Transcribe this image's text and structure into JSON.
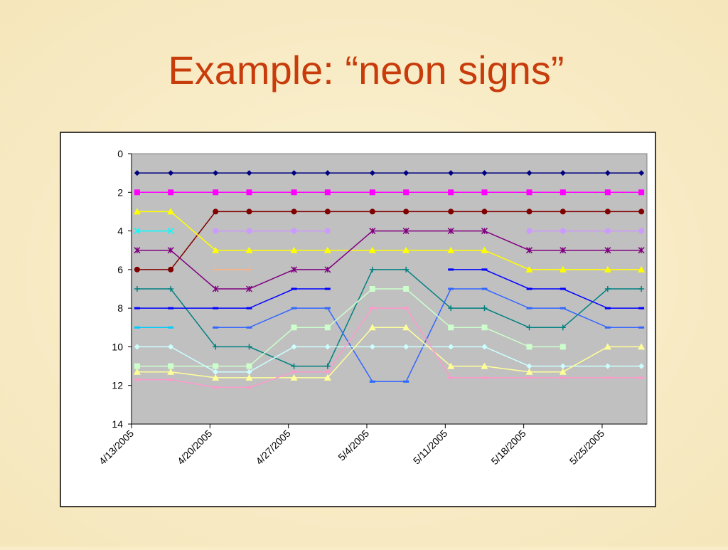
{
  "title": "Example: “neon signs”",
  "chart_data": {
    "type": "line",
    "y_reversed": true,
    "plot_background": "#c0c0c0",
    "x": [
      "4/13/2005",
      "4/16/2005",
      "4/20/2005",
      "4/23/2005",
      "4/27/2005",
      "4/30/2005",
      "5/4/2005",
      "5/7/2005",
      "5/11/2005",
      "5/14/2005",
      "5/18/2005",
      "5/21/2005",
      "5/25/2005",
      "5/28/2005"
    ],
    "xlim": [
      "4/13/2005",
      "5/29/2005"
    ],
    "xticks": [
      "4/13/2005",
      "4/20/2005",
      "4/27/2005",
      "5/4/2005",
      "5/11/2005",
      "5/18/2005",
      "5/25/2005"
    ],
    "ylim": [
      0,
      14
    ],
    "yticks": [
      0,
      2,
      4,
      6,
      8,
      10,
      12,
      14
    ],
    "series": [
      {
        "color": "#000080",
        "marker": "diamond",
        "values": [
          1,
          1,
          1,
          1,
          1,
          1,
          1,
          1,
          1,
          1,
          1,
          1,
          1,
          1
        ]
      },
      {
        "color": "#ff00ff",
        "marker": "square",
        "values": [
          2,
          2,
          2,
          2,
          2,
          2,
          2,
          2,
          2,
          2,
          2,
          2,
          2,
          2
        ]
      },
      {
        "color": "#800000",
        "marker": "circle",
        "values": [
          6,
          6,
          3,
          3,
          3,
          3,
          3,
          3,
          3,
          3,
          3,
          3,
          3,
          3
        ]
      },
      {
        "color": "#ffff00",
        "marker": "triangle",
        "values": [
          3,
          3,
          5,
          5,
          5,
          5,
          5,
          5,
          5,
          5,
          6,
          6,
          6,
          6
        ]
      },
      {
        "color": "#00ffff",
        "marker": "x",
        "values": [
          4,
          4,
          null,
          null,
          null,
          null,
          null,
          null,
          null,
          null,
          null,
          null,
          null,
          null
        ]
      },
      {
        "color": "#cc99ff",
        "marker": "circle",
        "values": [
          null,
          null,
          4,
          4,
          4,
          4,
          null,
          null,
          null,
          null,
          4,
          4,
          4,
          4
        ]
      },
      {
        "color": "#800080",
        "marker": "star",
        "values": [
          5,
          5,
          7,
          7,
          6,
          6,
          4,
          4,
          4,
          4,
          5,
          5,
          5,
          5
        ]
      },
      {
        "color": "#ffb080",
        "marker": "plus",
        "values": [
          null,
          null,
          6,
          6,
          null,
          null,
          null,
          null,
          null,
          null,
          null,
          null,
          null,
          null
        ]
      },
      {
        "color": "#008080",
        "marker": "plus",
        "values": [
          7,
          7,
          10,
          10,
          11,
          11,
          6,
          6,
          8,
          8,
          9,
          9,
          7,
          7
        ]
      },
      {
        "color": "#0000ff",
        "marker": "dash",
        "values": [
          8,
          8,
          8,
          8,
          7,
          7,
          null,
          null,
          6,
          6,
          7,
          7,
          8,
          8
        ]
      },
      {
        "color": "#00ccff",
        "marker": "dash",
        "values": [
          9,
          9,
          null,
          null,
          null,
          null,
          11.8,
          11.8,
          null,
          null,
          null,
          null,
          null,
          null
        ]
      },
      {
        "color": "#3366ff",
        "marker": "dash",
        "values": [
          null,
          null,
          9,
          9,
          8,
          8,
          11.8,
          11.8,
          7,
          7,
          8,
          8,
          9,
          9
        ]
      },
      {
        "color": "#ccffcc",
        "marker": "square",
        "values": [
          11,
          11,
          11,
          11,
          9,
          9,
          7,
          7,
          9,
          9,
          10,
          10,
          null,
          null
        ]
      },
      {
        "color": "#ccffff",
        "marker": "diamond",
        "values": [
          10,
          10,
          11.3,
          11.3,
          10,
          10,
          10,
          10,
          10,
          10,
          11,
          11,
          11,
          11
        ]
      },
      {
        "color": "#ffff99",
        "marker": "triangle",
        "values": [
          11.3,
          11.3,
          11.6,
          11.6,
          11.6,
          11.6,
          9,
          9,
          11,
          11,
          11.3,
          11.3,
          10,
          10
        ]
      },
      {
        "color": "#ff99cc",
        "marker": "dash",
        "values": [
          11.7,
          11.7,
          12.1,
          12.1,
          11.3,
          11.3,
          8,
          8,
          11.6,
          11.6,
          11.6,
          11.6,
          11.6,
          11.6
        ]
      }
    ]
  }
}
